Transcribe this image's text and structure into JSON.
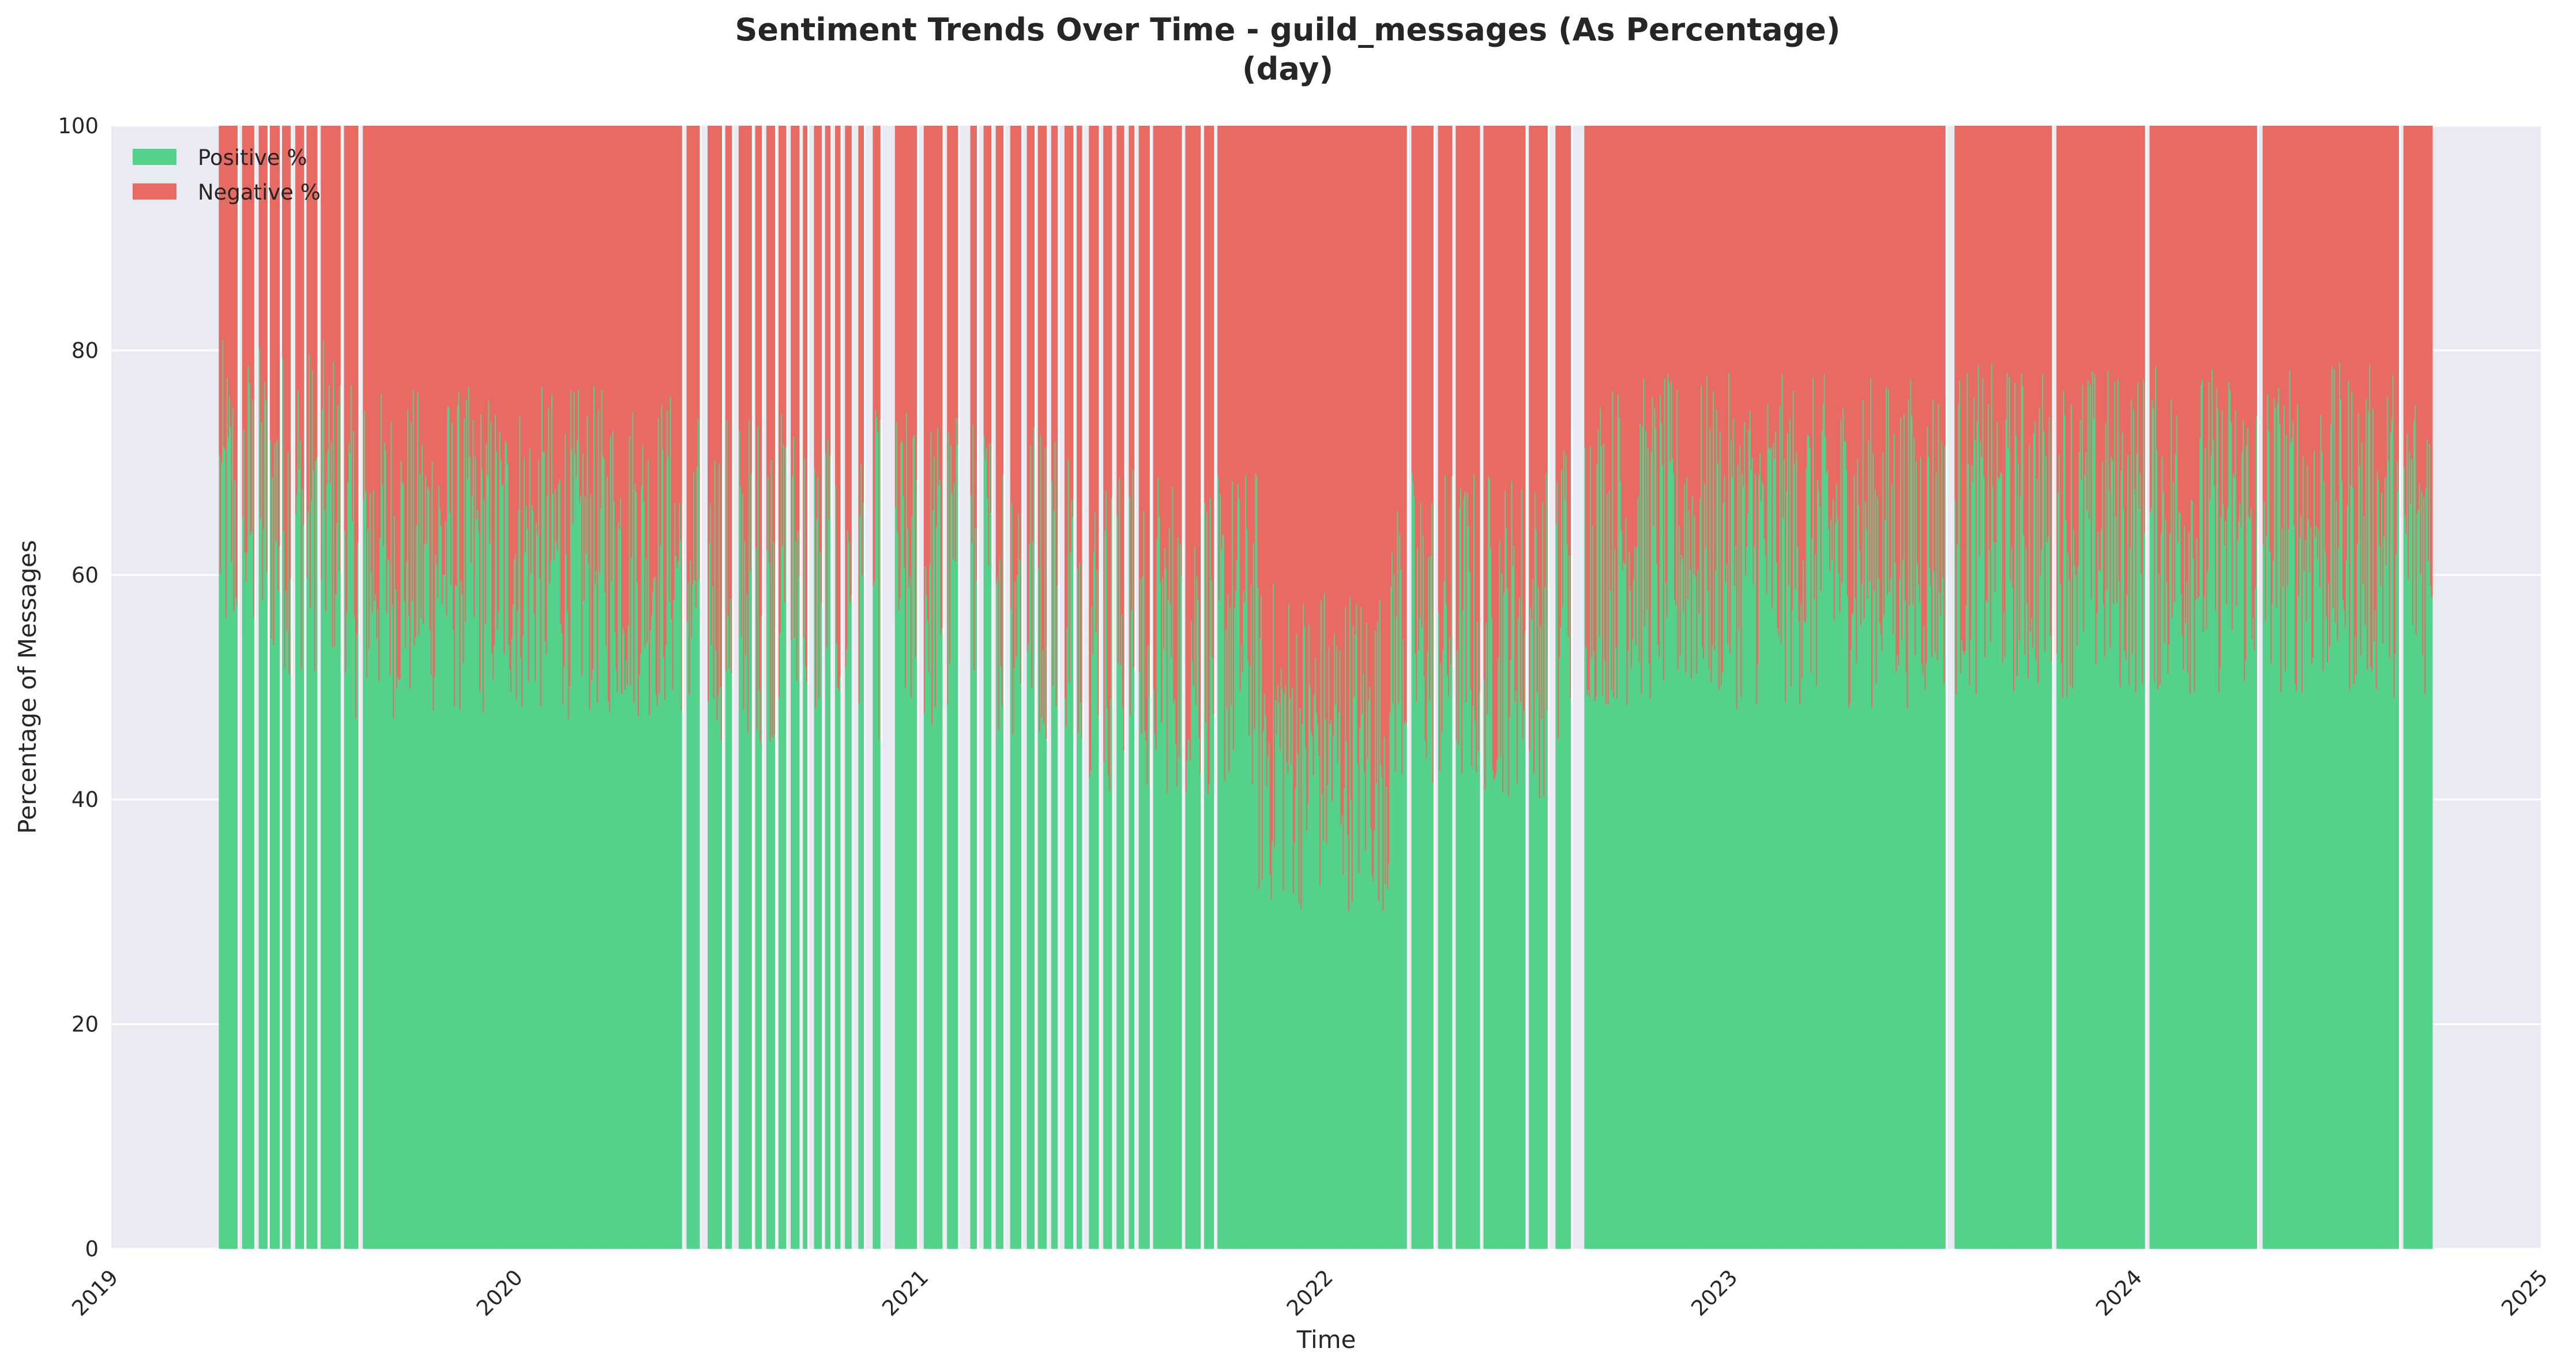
{
  "chart_data": {
    "type": "area",
    "title_line1": "Sentiment Trends Over Time - guild_messages (As Percentage)",
    "title_line2": "(day)",
    "xlabel": "Time",
    "ylabel": "Percentage of Messages",
    "x_range": [
      "2019-01-01",
      "2025-01-01"
    ],
    "ylim": [
      0,
      100
    ],
    "x_ticks": [
      "2019",
      "2020",
      "2021",
      "2022",
      "2023",
      "2024",
      "2025"
    ],
    "y_ticks": [
      "0",
      "20",
      "40",
      "60",
      "80",
      "100"
    ],
    "grid": true,
    "stacked": true,
    "legend_position": "top-left",
    "data_start": "2019-04-08",
    "data_end": "2024-09-25",
    "series": [
      {
        "name": "Positive %",
        "color": "#54d18b"
      },
      {
        "name": "Negative %",
        "color": "#e86b63"
      }
    ],
    "positive_level_segments": [
      {
        "from": "2019-04-08",
        "to": "2019-08-01",
        "positive_pct": 66
      },
      {
        "from": "2019-08-01",
        "to": "2020-06-01",
        "positive_pct": 62
      },
      {
        "from": "2020-06-01",
        "to": "2021-06-01",
        "positive_pct": 60
      },
      {
        "from": "2021-06-01",
        "to": "2021-11-01",
        "positive_pct": 55
      },
      {
        "from": "2021-11-01",
        "to": "2022-03-01",
        "positive_pct": 45
      },
      {
        "from": "2022-03-01",
        "to": "2022-08-01",
        "positive_pct": 55
      },
      {
        "from": "2022-08-01",
        "to": "2023-07-01",
        "positive_pct": 63
      },
      {
        "from": "2023-07-01",
        "to": "2024-09-25",
        "positive_pct": 64
      }
    ],
    "gaps": [
      [
        "2019-04-25",
        "2019-04-29"
      ],
      [
        "2019-05-10",
        "2019-05-14"
      ],
      [
        "2019-05-22",
        "2019-05-24"
      ],
      [
        "2019-06-02",
        "2019-06-04"
      ],
      [
        "2019-06-12",
        "2019-06-16"
      ],
      [
        "2019-06-24",
        "2019-06-26"
      ],
      [
        "2019-07-06",
        "2019-07-09"
      ],
      [
        "2019-07-27",
        "2019-07-30"
      ],
      [
        "2019-08-12",
        "2019-08-16"
      ],
      [
        "2020-05-30",
        "2020-06-03"
      ],
      [
        "2020-06-15",
        "2020-06-22"
      ],
      [
        "2020-07-05",
        "2020-07-08"
      ],
      [
        "2020-07-14",
        "2020-07-20"
      ],
      [
        "2020-08-01",
        "2020-08-04"
      ],
      [
        "2020-08-10",
        "2020-08-14"
      ],
      [
        "2020-08-22",
        "2020-08-25"
      ],
      [
        "2020-09-01",
        "2020-09-05"
      ],
      [
        "2020-09-13",
        "2020-09-16"
      ],
      [
        "2020-09-20",
        "2020-09-26"
      ],
      [
        "2020-10-03",
        "2020-10-06"
      ],
      [
        "2020-10-11",
        "2020-10-15"
      ],
      [
        "2020-10-20",
        "2020-10-24"
      ],
      [
        "2020-10-30",
        "2020-11-05"
      ],
      [
        "2020-11-10",
        "2020-11-18"
      ],
      [
        "2020-11-25",
        "2020-12-08"
      ],
      [
        "2020-12-28",
        "2021-01-03"
      ],
      [
        "2021-01-20",
        "2021-01-24"
      ],
      [
        "2021-02-03",
        "2021-02-14"
      ],
      [
        "2021-02-20",
        "2021-02-26"
      ],
      [
        "2021-03-05",
        "2021-03-09"
      ],
      [
        "2021-03-16",
        "2021-03-22"
      ],
      [
        "2021-04-01",
        "2021-04-06"
      ],
      [
        "2021-04-13",
        "2021-04-16"
      ],
      [
        "2021-04-24",
        "2021-04-28"
      ],
      [
        "2021-05-04",
        "2021-05-10"
      ],
      [
        "2021-05-18",
        "2021-05-21"
      ],
      [
        "2021-05-26",
        "2021-06-01"
      ],
      [
        "2021-06-10",
        "2021-06-14"
      ],
      [
        "2021-06-22",
        "2021-06-26"
      ],
      [
        "2021-07-03",
        "2021-07-07"
      ],
      [
        "2021-07-12",
        "2021-07-16"
      ],
      [
        "2021-07-26",
        "2021-07-29"
      ],
      [
        "2021-08-24",
        "2021-08-27"
      ],
      [
        "2021-09-10",
        "2021-09-13"
      ],
      [
        "2021-09-22",
        "2021-09-25"
      ],
      [
        "2022-03-15",
        "2022-03-19"
      ],
      [
        "2022-04-08",
        "2022-04-12"
      ],
      [
        "2022-04-25",
        "2022-04-28"
      ],
      [
        "2022-05-20",
        "2022-05-23"
      ],
      [
        "2022-06-30",
        "2022-07-03"
      ],
      [
        "2022-07-20",
        "2022-07-27"
      ],
      [
        "2022-08-10",
        "2022-08-22"
      ],
      [
        "2023-07-14",
        "2023-07-22"
      ],
      [
        "2023-10-18",
        "2023-10-22"
      ],
      [
        "2024-01-10",
        "2024-01-14"
      ],
      [
        "2024-04-20",
        "2024-04-25"
      ],
      [
        "2024-08-26",
        "2024-08-30"
      ]
    ]
  }
}
